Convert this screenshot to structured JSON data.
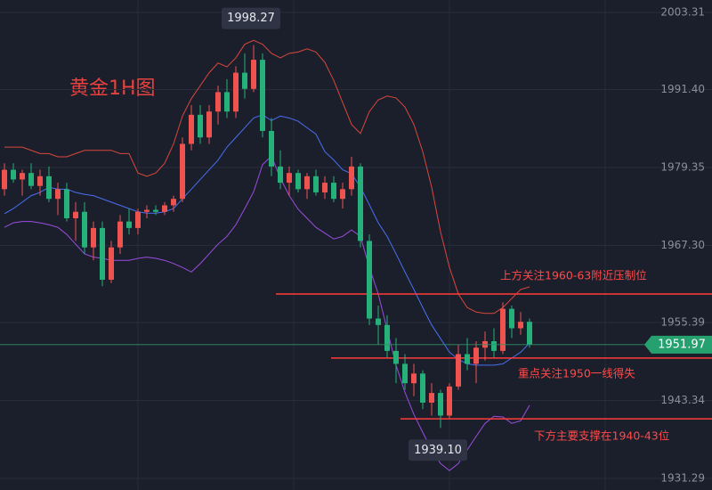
{
  "chart_data": {
    "type": "candlestick",
    "title": "黄金1H图",
    "ylim": [
      1929.5,
      2005.24
    ],
    "yticks": [
      2003.31,
      {
        "value": 1991.4,
        "label": "1991.40"
      },
      1979.35,
      {
        "value": 1967.3,
        "label": "1967.30"
      },
      1955.39,
      1943.34,
      1931.29
    ],
    "grid": true,
    "up_color": "#ef5350",
    "down_color": "#26b07a",
    "candles": {
      "open": [
        1976,
        1979,
        1977.5,
        1978.5,
        1976.5,
        1978,
        1974.5,
        1976,
        1971.5,
        1972.5,
        1967,
        1970,
        1962,
        1967,
        1971,
        1970,
        1972.5,
        1972.8,
        1972.5,
        1973.5,
        1974.5,
        1983,
        1987.5,
        1984,
        1988,
        1991,
        1988,
        1994,
        1991.5,
        1996,
        1985,
        1979.5,
        1977,
        1978.5,
        1976,
        1978,
        1975.5,
        1977,
        1974.5,
        1976,
        1979.5,
        1968,
        1956,
        1955,
        1951,
        1949,
        1946,
        1947.5,
        1943,
        1944.5,
        1941,
        1945.5,
        1950.5,
        1949,
        1951.5,
        1952.5,
        1951,
        1957.5,
        1954.5,
        1955.5
      ],
      "high": [
        1980,
        1980,
        1979,
        1980,
        1979,
        1979.5,
        1977,
        1977,
        1974,
        1974,
        1971,
        1971,
        1968,
        1972,
        1973,
        1973,
        1973.5,
        1973.5,
        1974,
        1975,
        1984,
        1989,
        1989,
        1989,
        1992,
        1993,
        1995,
        1997,
        1998.27,
        1997,
        1987,
        1982,
        1979.5,
        1979,
        1978.5,
        1979,
        1978,
        1978,
        1977,
        1981,
        1980,
        1969,
        1958,
        1956.5,
        1953,
        1950.5,
        1949,
        1948,
        1946,
        1945,
        1946,
        1952,
        1953,
        1952.5,
        1954,
        1954.5,
        1958.5,
        1958,
        1957,
        1956
      ],
      "low": [
        1975,
        1977,
        1975,
        1976,
        1975,
        1974,
        1972,
        1971,
        1968,
        1966,
        1965,
        1961,
        1961.5,
        1966,
        1969,
        1969,
        1971.5,
        1972,
        1972,
        1972.5,
        1974,
        1982,
        1983,
        1983,
        1986,
        1987,
        1987,
        1990,
        1991,
        1984,
        1978,
        1976,
        1975,
        1975.5,
        1974.5,
        1975,
        1974.5,
        1974,
        1973,
        1975,
        1967,
        1955,
        1952,
        1950,
        1946,
        1945,
        1944,
        1942,
        1941,
        1939.1,
        1940.5,
        1945,
        1948,
        1946,
        1949.5,
        1950,
        1950.5,
        1953,
        1953.5,
        1951.5
      ],
      "close": [
        1979,
        1977.5,
        1978.5,
        1976.5,
        1978,
        1974.5,
        1976,
        1971.5,
        1972.5,
        1967,
        1970,
        1962,
        1967,
        1971,
        1970,
        1972.5,
        1972.8,
        1972.5,
        1973.5,
        1974.5,
        1983,
        1987.5,
        1984,
        1988,
        1991,
        1988,
        1994,
        1991.5,
        1996,
        1985,
        1979.5,
        1977,
        1978.5,
        1976,
        1978,
        1975.5,
        1977,
        1974.5,
        1976,
        1979.5,
        1968,
        1956,
        1955,
        1951,
        1949,
        1946,
        1947.5,
        1943,
        1944.5,
        1941,
        1945.5,
        1950.5,
        1949,
        1951.5,
        1952.5,
        1951,
        1957.5,
        1954.5,
        1955.5,
        1951.97
      ]
    },
    "bands": {
      "upper": {
        "color": "#d9473d",
        "values": [
          1982.5,
          1982.5,
          1982.5,
          1982,
          1981.5,
          1981.5,
          1981,
          1981,
          1981.5,
          1982,
          1982,
          1982,
          1982,
          1981.5,
          1981.5,
          1978.5,
          1978,
          1978.5,
          1980,
          1983,
          1987.3,
          1990,
          1992,
          1994,
          1995.5,
          1994.9,
          1996.3,
          1998.4,
          1999,
          1998.4,
          1997,
          1996.3,
          1997,
          1997.2,
          1997.7,
          1997.2,
          1995.6,
          1992.8,
          1989.4,
          1986,
          1984.6,
          1988,
          1989.8,
          1990.4,
          1990.1,
          1988.7,
          1986,
          1981.8,
          1976.3,
          1969.4,
          1963.9,
          1959.8,
          1957.7,
          1957,
          1956.8,
          1956.8,
          1957.7,
          1959.1,
          1960.5,
          1960.9
        ]
      },
      "middle": {
        "color": "#4a6ff0",
        "values": [
          1972.2,
          1973,
          1974,
          1975,
          1975.5,
          1976.3,
          1976,
          1976,
          1975.5,
          1975.2,
          1975,
          1974.5,
          1974,
          1973.5,
          1973,
          1972.5,
          1972.3,
          1972.3,
          1972.5,
          1973,
          1974.5,
          1976,
          1977.5,
          1979,
          1980.5,
          1982.5,
          1984,
          1985.5,
          1987,
          1987.5,
          1986.6,
          1987.3,
          1987,
          1986.5,
          1985.5,
          1984.5,
          1981.8,
          1980.5,
          1979,
          1978.4,
          1976.3,
          1973.6,
          1970.8,
          1968.7,
          1966,
          1963.2,
          1960.5,
          1957.7,
          1955,
          1952.9,
          1950.8,
          1949.7,
          1949,
          1948.8,
          1948.8,
          1948.8,
          1949,
          1949.9,
          1950.8,
          1952.2
        ]
      },
      "lower": {
        "color": "#9a4de0",
        "values": [
          1970.1,
          1970.8,
          1971,
          1971,
          1970.8,
          1970.5,
          1970.1,
          1969,
          1967.5,
          1966,
          1965.5,
          1965.3,
          1965,
          1965,
          1965,
          1965.3,
          1965.5,
          1965.3,
          1965,
          1964.5,
          1963.9,
          1963.2,
          1964.5,
          1966,
          1967.5,
          1968.7,
          1970.5,
          1973,
          1975.6,
          1979.8,
          1981.1,
          1977.7,
          1975,
          1972.9,
          1971.5,
          1970.1,
          1969.2,
          1968.3,
          1968.7,
          1969.7,
          1968.7,
          1963.9,
          1959.8,
          1954.3,
          1948.8,
          1944.6,
          1941.2,
          1938.4,
          1935.7,
          1933.6,
          1932.5,
          1933.6,
          1935.7,
          1937.8,
          1939.8,
          1940.9,
          1940.8,
          1939.8,
          1940.2,
          1942.6
        ]
      }
    },
    "max_label": "1998.27",
    "min_label": "1939.10",
    "levels": [
      {
        "value": 1959.8,
        "text": "上方关注1960-63附近压制位"
      },
      {
        "value": 1949.9,
        "text": "重点关注1950一线得失"
      },
      {
        "value": 1940.5,
        "text": "下方主要支撑在1940-43位"
      }
    ]
  }
}
